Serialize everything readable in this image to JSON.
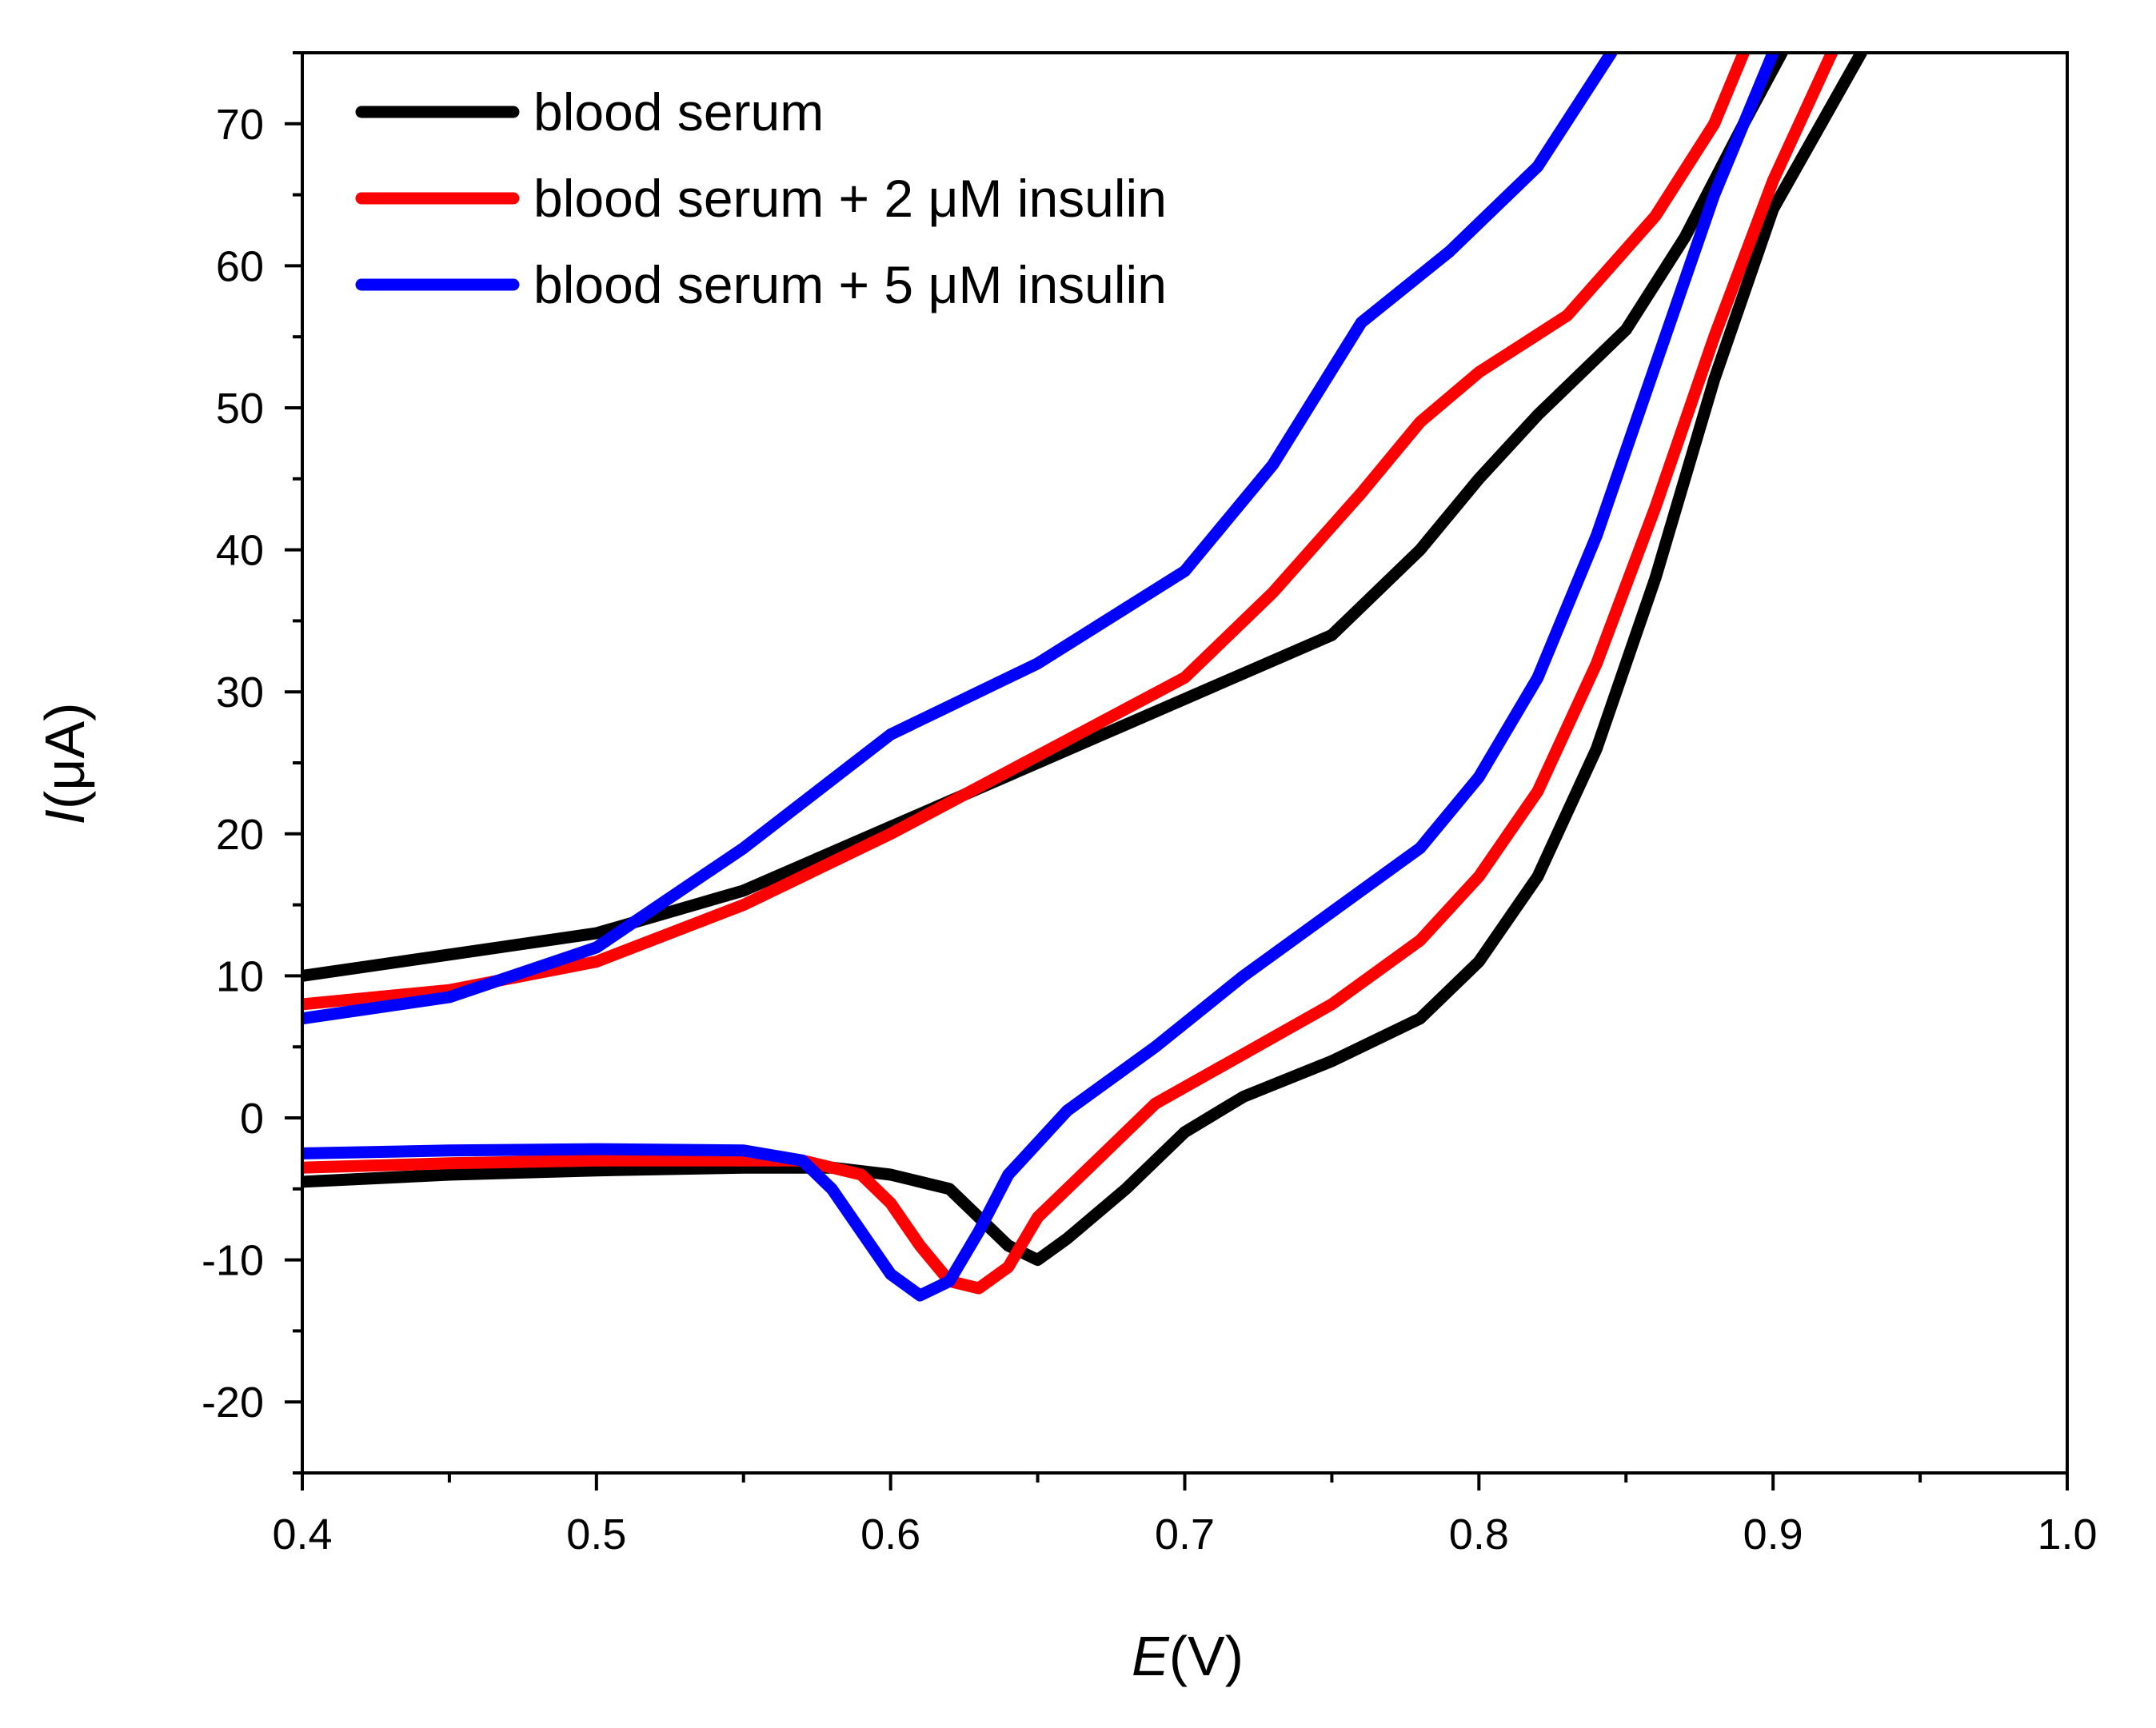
{
  "chart_data": {
    "type": "line",
    "xlabel_italic": "E",
    "xlabel_unit": "(V)",
    "ylabel_italic": "I",
    "ylabel_unit": "(μA)",
    "xlim": [
      0.4,
      1.0
    ],
    "ylim": [
      -25,
      75
    ],
    "xticks": [
      "0.4",
      "0.5",
      "0.6",
      "0.7",
      "0.8",
      "0.9",
      "1.0"
    ],
    "yticks": [
      "-20",
      "-10",
      "0",
      "10",
      "20",
      "30",
      "40",
      "50",
      "60",
      "70"
    ],
    "grid": false,
    "legend_position": "top-left",
    "series": [
      {
        "name": "blood serum",
        "color": "#000000",
        "forward": [
          [
            0.4,
            -4.5
          ],
          [
            0.45,
            -4.0
          ],
          [
            0.5,
            -3.7
          ],
          [
            0.55,
            -3.5
          ],
          [
            0.58,
            -3.5
          ],
          [
            0.6,
            -4.0
          ],
          [
            0.62,
            -5.0
          ],
          [
            0.63,
            -7.0
          ],
          [
            0.64,
            -9.0
          ],
          [
            0.65,
            -10.0
          ],
          [
            0.66,
            -8.5
          ],
          [
            0.68,
            -5.0
          ],
          [
            0.7,
            -1.0
          ],
          [
            0.72,
            1.5
          ],
          [
            0.75,
            4.0
          ],
          [
            0.78,
            7.0
          ],
          [
            0.8,
            11.0
          ],
          [
            0.82,
            17.0
          ],
          [
            0.84,
            26.0
          ],
          [
            0.86,
            38.0
          ],
          [
            0.88,
            52.0
          ],
          [
            0.9,
            64.0
          ],
          [
            0.93,
            75.0
          ]
        ],
        "reverse": [
          [
            0.4,
            10.0
          ],
          [
            0.45,
            11.5
          ],
          [
            0.5,
            13.0
          ],
          [
            0.55,
            16.0
          ],
          [
            0.6,
            20.5
          ],
          [
            0.65,
            25.0
          ],
          [
            0.7,
            29.5
          ],
          [
            0.75,
            34.0
          ],
          [
            0.78,
            40.0
          ],
          [
            0.8,
            45.0
          ],
          [
            0.82,
            49.5
          ],
          [
            0.85,
            55.5
          ],
          [
            0.87,
            62.0
          ],
          [
            0.89,
            70.0
          ],
          [
            0.903,
            75.0
          ]
        ]
      },
      {
        "name": "blood serum + 2 μM insulin",
        "color": "#ff0000",
        "forward": [
          [
            0.4,
            -3.5
          ],
          [
            0.45,
            -3.2
          ],
          [
            0.5,
            -3.0
          ],
          [
            0.55,
            -3.0
          ],
          [
            0.57,
            -3.0
          ],
          [
            0.59,
            -4.0
          ],
          [
            0.6,
            -6.0
          ],
          [
            0.61,
            -9.0
          ],
          [
            0.62,
            -11.5
          ],
          [
            0.63,
            -12.0
          ],
          [
            0.64,
            -10.5
          ],
          [
            0.65,
            -7.0
          ],
          [
            0.67,
            -3.0
          ],
          [
            0.69,
            1.0
          ],
          [
            0.72,
            4.5
          ],
          [
            0.75,
            8.0
          ],
          [
            0.78,
            12.5
          ],
          [
            0.8,
            17.0
          ],
          [
            0.82,
            23.0
          ],
          [
            0.84,
            32.0
          ],
          [
            0.86,
            43.0
          ],
          [
            0.88,
            55.0
          ],
          [
            0.9,
            66.0
          ],
          [
            0.92,
            75.0
          ]
        ],
        "reverse": [
          [
            0.4,
            8.0
          ],
          [
            0.45,
            9.0
          ],
          [
            0.5,
            11.0
          ],
          [
            0.55,
            15.0
          ],
          [
            0.6,
            20.0
          ],
          [
            0.65,
            25.5
          ],
          [
            0.7,
            31.0
          ],
          [
            0.73,
            37.0
          ],
          [
            0.76,
            44.0
          ],
          [
            0.78,
            49.0
          ],
          [
            0.8,
            52.5
          ],
          [
            0.83,
            56.5
          ],
          [
            0.86,
            63.5
          ],
          [
            0.88,
            70.0
          ],
          [
            0.89,
            75.0
          ]
        ]
      },
      {
        "name": "blood serum + 5 μM insulin",
        "color": "#0000ff",
        "forward": [
          [
            0.4,
            -2.5
          ],
          [
            0.45,
            -2.3
          ],
          [
            0.5,
            -2.2
          ],
          [
            0.55,
            -2.3
          ],
          [
            0.57,
            -3.0
          ],
          [
            0.58,
            -5.0
          ],
          [
            0.59,
            -8.0
          ],
          [
            0.6,
            -11.0
          ],
          [
            0.61,
            -12.5
          ],
          [
            0.62,
            -11.5
          ],
          [
            0.63,
            -8.0
          ],
          [
            0.64,
            -4.0
          ],
          [
            0.66,
            0.5
          ],
          [
            0.69,
            5.0
          ],
          [
            0.72,
            10.0
          ],
          [
            0.75,
            14.5
          ],
          [
            0.78,
            19.0
          ],
          [
            0.8,
            24.0
          ],
          [
            0.82,
            31.0
          ],
          [
            0.84,
            41.0
          ],
          [
            0.86,
            53.0
          ],
          [
            0.88,
            65.0
          ],
          [
            0.9,
            75.0
          ]
        ],
        "reverse": [
          [
            0.4,
            7.0
          ],
          [
            0.45,
            8.5
          ],
          [
            0.5,
            12.0
          ],
          [
            0.55,
            19.0
          ],
          [
            0.6,
            27.0
          ],
          [
            0.65,
            32.0
          ],
          [
            0.7,
            38.5
          ],
          [
            0.73,
            46.0
          ],
          [
            0.76,
            56.0
          ],
          [
            0.79,
            61.0
          ],
          [
            0.82,
            67.0
          ],
          [
            0.845,
            75.0
          ]
        ]
      }
    ]
  }
}
